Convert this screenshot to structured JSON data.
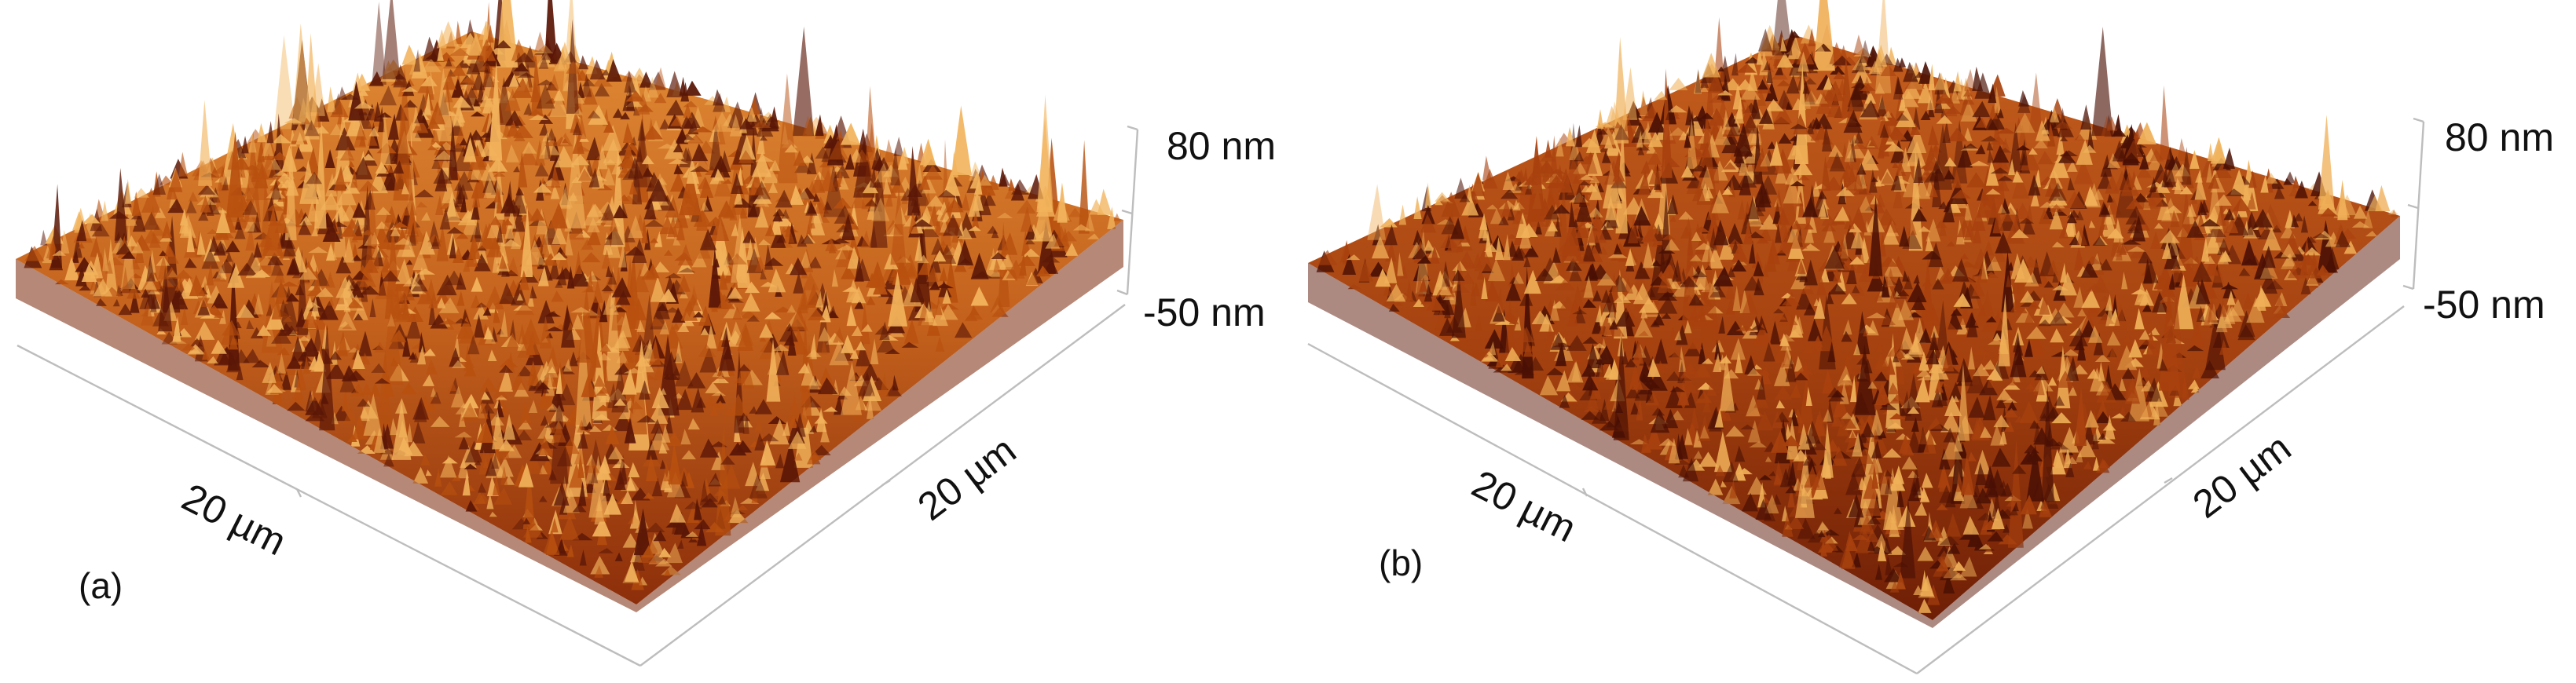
{
  "panels": [
    {
      "label": "(a)",
      "z_max_label": "80 nm",
      "z_min_label": "-50 nm",
      "x_label": "20 µm",
      "y_label": "20 µm",
      "colors": {
        "base": "#b8500f",
        "dark": "#5a1606",
        "light": "#f2b35c"
      }
    },
    {
      "label": "(b)",
      "z_max_label": "80 nm",
      "z_min_label": "-50 nm",
      "x_label": "20 µm",
      "y_label": "20 µm",
      "colors": {
        "base": "#a8410e",
        "dark": "#4a1004",
        "light": "#f0b058"
      }
    }
  ]
}
